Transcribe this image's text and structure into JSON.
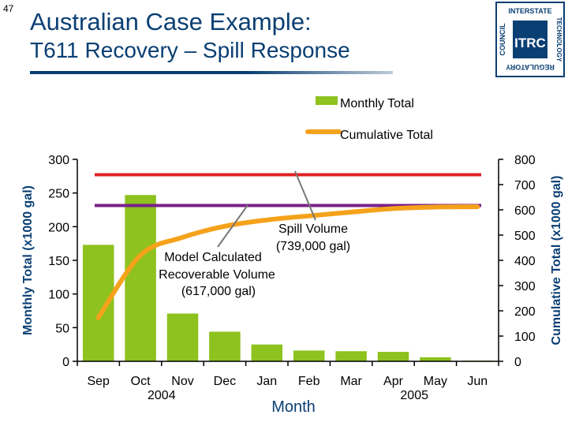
{
  "slide": {
    "number": "47",
    "title_line1": "Australian Case Example:",
    "title_line2": "T611 Recovery – Spill Response"
  },
  "logo": {
    "center_text": "ITRC",
    "ring_top": "INTERSTATE",
    "ring_right": "TECHNOLOGY",
    "ring_bottom": "REGULATORY",
    "ring_left": "COUNCIL"
  },
  "colors": {
    "monthly": "#8dc21f",
    "cumulative": "#f5a21b",
    "spill_line": "#e02020",
    "recoverable_line": "#7a1f8a",
    "title": "#0a3f73"
  },
  "chart_data": {
    "type": "bar",
    "categories": [
      "Sep",
      "Oct",
      "Nov",
      "Dec",
      "Jan",
      "Feb",
      "Mar",
      "Apr",
      "May",
      "Jun"
    ],
    "category_sublabels": [
      "",
      "2004",
      "",
      "",
      "",
      "",
      "",
      "2005",
      "",
      ""
    ],
    "series": [
      {
        "name": "Monthly Total",
        "axis": "left",
        "type": "bar",
        "values": [
          173,
          247,
          71,
          44,
          25,
          16,
          15,
          14,
          6,
          1
        ]
      },
      {
        "name": "Cumulative Total",
        "axis": "right",
        "type": "line",
        "values": [
          173,
          420,
          491,
          535,
          560,
          576,
          591,
          605,
          611,
          612
        ]
      }
    ],
    "reference_lines": [
      {
        "axis": "right",
        "value": 739,
        "label_line1": "Spill Volume",
        "label_line2": "(739,000 gal)"
      },
      {
        "axis": "right",
        "value": 617,
        "label_line1": "Model Calculated",
        "label_line2": "Recoverable Volume",
        "label_line3": "(617,000 gal)"
      }
    ],
    "xlabel": "Month",
    "ylabel_left": "Monthly Total (x1000 gal)",
    "ylabel_right": "Cumulative Total (x1000 gal)",
    "ylim_left": [
      0,
      300
    ],
    "ylim_right": [
      0,
      800
    ],
    "yticks_left": [
      0,
      50,
      100,
      150,
      200,
      250,
      300
    ],
    "yticks_right": [
      0,
      100,
      200,
      300,
      400,
      500,
      600,
      700,
      800
    ],
    "legend_position": "top-right",
    "grid": false
  }
}
